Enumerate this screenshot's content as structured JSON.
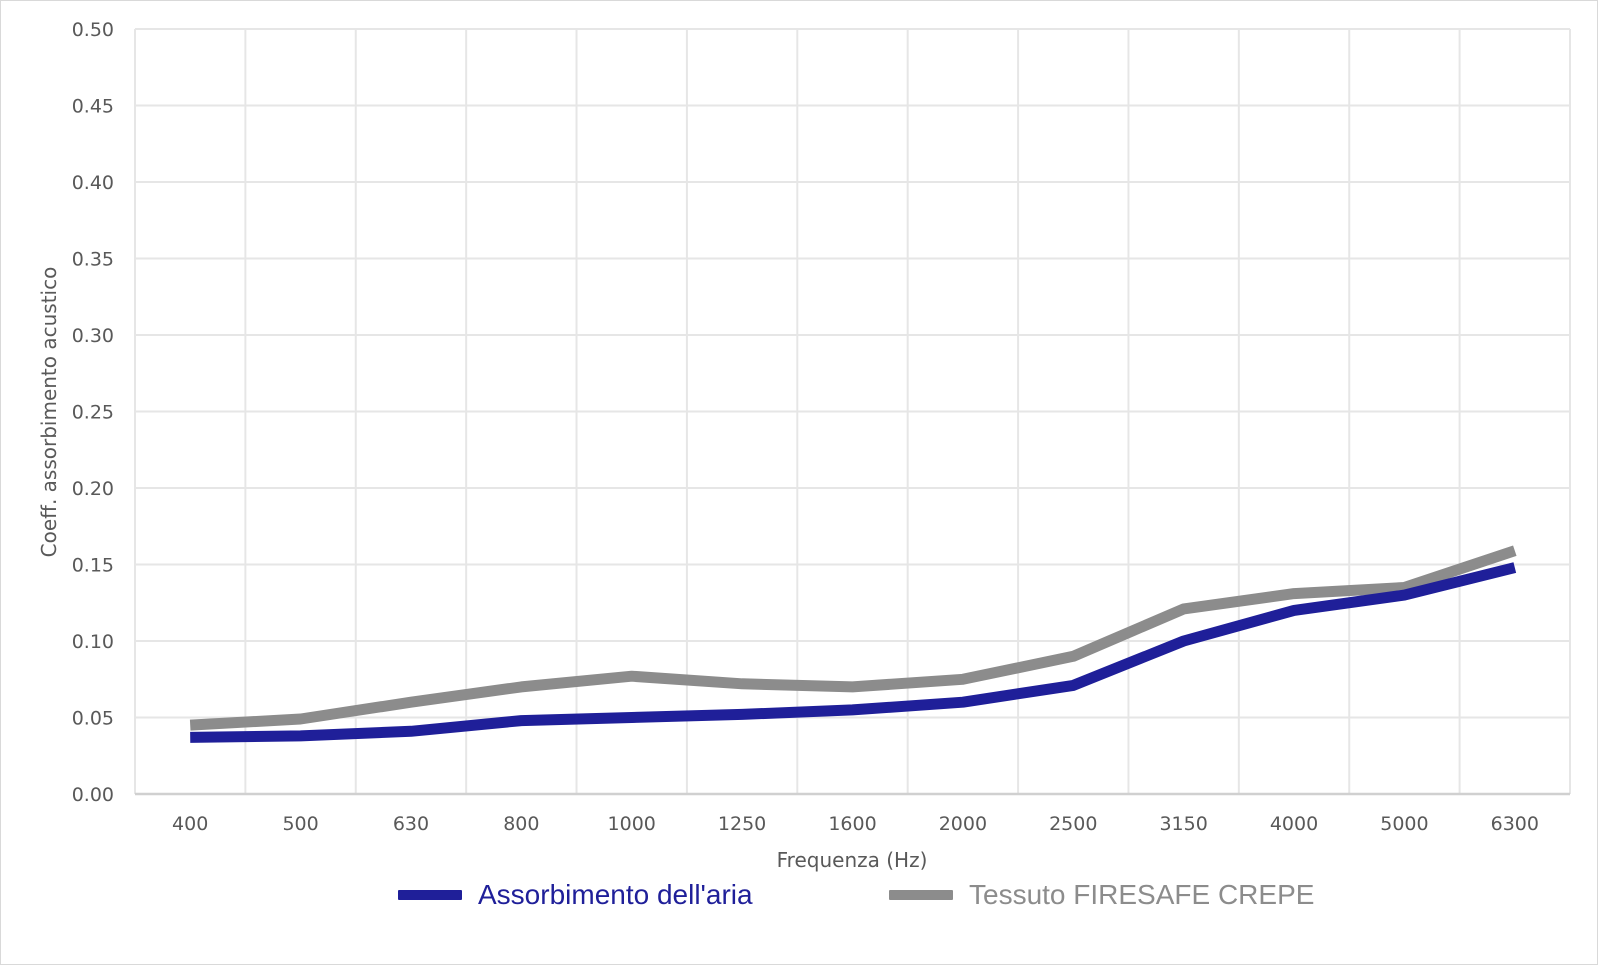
{
  "chart_data": {
    "type": "line",
    "title": "",
    "xlabel": "Frequenza (Hz)",
    "ylabel": "Coeff. assorbimento acustico",
    "categories": [
      "400",
      "500",
      "630",
      "800",
      "1000",
      "1250",
      "1600",
      "2000",
      "2500",
      "3150",
      "4000",
      "5000",
      "6300"
    ],
    "ylim": [
      0,
      0.5
    ],
    "yticks": [
      "0.00",
      "0.05",
      "0.10",
      "0.15",
      "0.20",
      "0.25",
      "0.30",
      "0.35",
      "0.40",
      "0.45",
      "0.50"
    ],
    "grid": true,
    "legend_position": "bottom",
    "series": [
      {
        "name": "Assorbimento dell'aria",
        "color": "#1f1f99",
        "values": [
          0.037,
          0.038,
          0.041,
          0.048,
          0.05,
          0.052,
          0.055,
          0.06,
          0.071,
          0.1,
          0.12,
          0.13,
          0.148
        ]
      },
      {
        "name": "Tessuto FIRESAFE CREPE",
        "color": "#8c8c8c",
        "values": [
          0.045,
          0.049,
          0.06,
          0.07,
          0.077,
          0.072,
          0.07,
          0.075,
          0.09,
          0.121,
          0.131,
          0.135,
          0.159
        ]
      }
    ]
  }
}
